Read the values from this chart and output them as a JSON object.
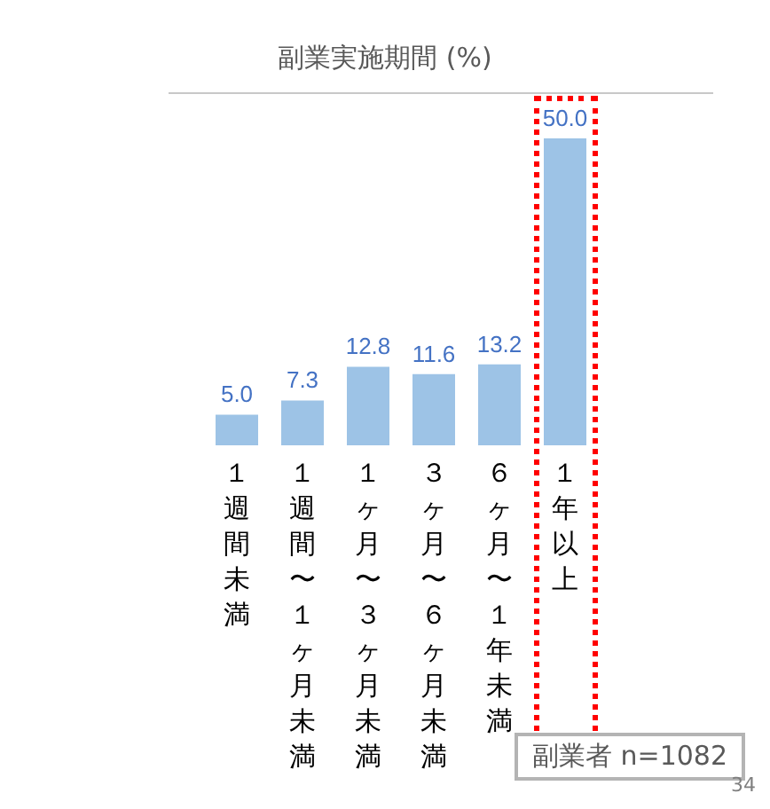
{
  "chart_data": {
    "type": "bar",
    "title": "副業実施期間 (%)",
    "categories": [
      "１週間未満",
      "１週間〜１ヶ月未満",
      "１ヶ月〜３ヶ月未満",
      "３ヶ月〜６ヶ月未満",
      "６ヶ月〜１年未満",
      "１年以上"
    ],
    "values": [
      5.0,
      7.3,
      12.8,
      11.6,
      13.2,
      50.0
    ],
    "color": "#9dc3e6",
    "value_labels": [
      "5.0",
      "7.3",
      "12.8",
      "11.6",
      "13.2",
      "50.0"
    ],
    "annotations": [
      "副業者 n=1082",
      "34"
    ]
  }
}
